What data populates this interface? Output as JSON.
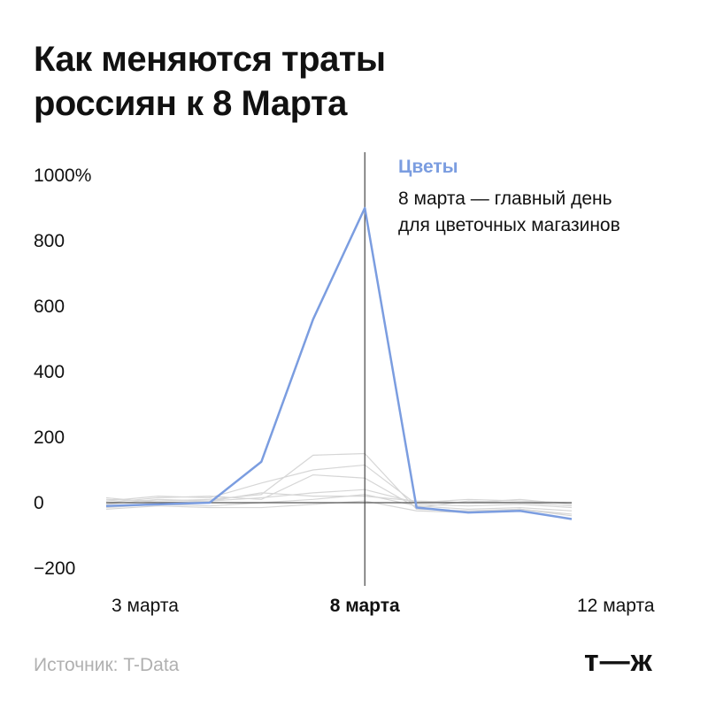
{
  "title_lines": [
    "Как меняются траты",
    "россиян к 8 Марта"
  ],
  "annotation": {
    "title": "Цветы",
    "lines": [
      "8 марта — главный день",
      "для цветочных магазинов"
    ]
  },
  "source": "Источник: T-Data",
  "logo": "т—ж",
  "colors": {
    "highlight": "#7b9de0",
    "background_lines": "#d6d6d6",
    "zero_line": "#555555",
    "marker_line": "#444444"
  },
  "chart_data": {
    "type": "line",
    "x": [
      3,
      4,
      5,
      6,
      7,
      8,
      9,
      10,
      11,
      12
    ],
    "x_tick_labels": [
      {
        "x": 3,
        "label": "3 марта",
        "bold": false
      },
      {
        "x": 8,
        "label": "8 марта",
        "bold": true
      },
      {
        "x": 12,
        "label": "12 марта",
        "bold": false
      }
    ],
    "y_ticks": [
      -200,
      0,
      200,
      400,
      600,
      800,
      1000
    ],
    "y_tick_labels": [
      "−200",
      "0",
      "200",
      "400",
      "600",
      "800",
      "1000%"
    ],
    "ylim": [
      -300,
      1050
    ],
    "xlim": [
      3,
      12
    ],
    "marker_x": 8,
    "highlight_series": {
      "name": "Цветы",
      "values": [
        -10,
        -5,
        0,
        125,
        560,
        900,
        -15,
        -30,
        -25,
        -50
      ]
    },
    "background_series": [
      {
        "values": [
          5,
          20,
          15,
          60,
          100,
          115,
          -5,
          -10,
          -5,
          -15
        ]
      },
      {
        "values": [
          10,
          5,
          10,
          25,
          145,
          150,
          -20,
          -25,
          -20,
          -35
        ]
      },
      {
        "values": [
          -5,
          10,
          5,
          15,
          30,
          40,
          0,
          10,
          5,
          0
        ]
      },
      {
        "values": [
          -15,
          -5,
          -10,
          0,
          10,
          25,
          -10,
          -20,
          -15,
          -25
        ]
      },
      {
        "values": [
          0,
          15,
          20,
          10,
          85,
          75,
          -15,
          5,
          0,
          -10
        ]
      },
      {
        "values": [
          -20,
          -10,
          -15,
          -15,
          -5,
          5,
          -25,
          -30,
          -20,
          -40
        ]
      },
      {
        "values": [
          15,
          0,
          5,
          30,
          20,
          20,
          5,
          0,
          10,
          -5
        ]
      }
    ]
  }
}
